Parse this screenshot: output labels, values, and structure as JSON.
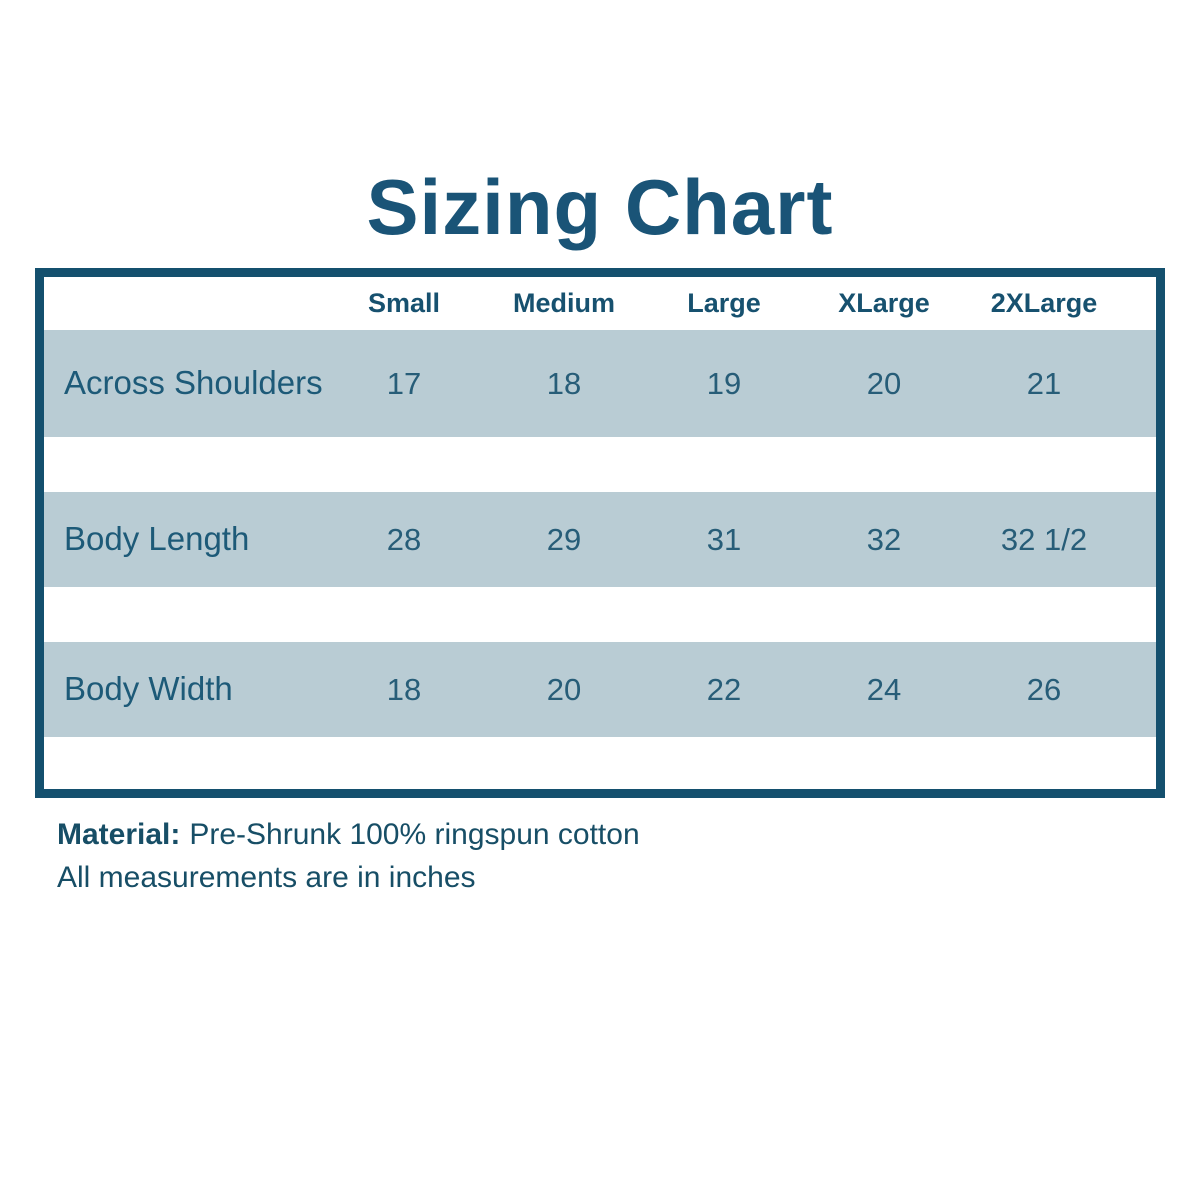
{
  "title": "Sizing Chart",
  "colors": {
    "accent_dark_teal": "#14506e",
    "title_text": "#1a5477",
    "cell_text": "#1d5a78",
    "stripe_blue_gray": "#b9ccd4",
    "background": "#ffffff"
  },
  "chart_data": {
    "type": "table",
    "title": "Sizing Chart",
    "columns": [
      "Small",
      "Medium",
      "Large",
      "XLarge",
      "2XLarge"
    ],
    "rows": [
      {
        "label": "Across Shoulders",
        "values": [
          "17",
          "18",
          "19",
          "20",
          "21"
        ]
      },
      {
        "label": "Body Length",
        "values": [
          "28",
          "29",
          "31",
          "32",
          "32 1/2"
        ]
      },
      {
        "label": "Body Width",
        "values": [
          "18",
          "20",
          "22",
          "24",
          "26"
        ]
      }
    ],
    "units": "inches",
    "layout_hints": {
      "striped_rows": true,
      "label_column_first": true,
      "border": "thick dark teal"
    }
  },
  "footer": {
    "material_label": "Material:",
    "material_value": "Pre-Shrunk 100% ringspun cotton",
    "note": "All measurements are in inches"
  }
}
